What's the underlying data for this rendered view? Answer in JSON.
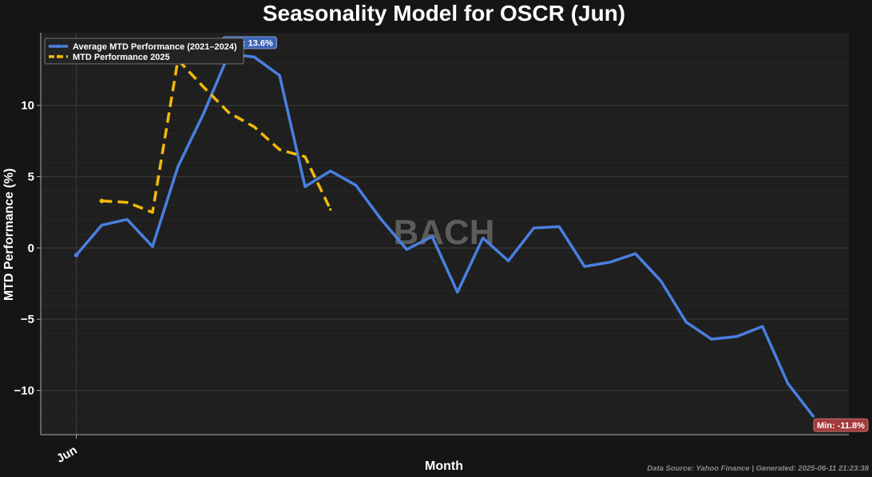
{
  "chart_data": {
    "type": "line",
    "title": "Seasonality Model for OSCR (Jun)",
    "xlabel": "Month",
    "ylabel": "MTD Performance (%)",
    "x_tick_labels": [
      {
        "x": 0,
        "label": "Jun"
      }
    ],
    "xlim": [
      -1.4,
      30.4
    ],
    "ylim": [
      -13.1,
      15.1
    ],
    "yticks": [
      -10,
      -5,
      0,
      5,
      10
    ],
    "ytick_labels": [
      "−10",
      "−5",
      "0",
      "5",
      "10"
    ],
    "grid": true,
    "legend_position": "top-left",
    "series": [
      {
        "name": "Average MTD Performance (2021–2024)",
        "color": "#4a7fe0",
        "style": "solid",
        "x": [
          0,
          1,
          2,
          3,
          4,
          5,
          6,
          7,
          8,
          9,
          10,
          11,
          12,
          13,
          14,
          15,
          16,
          17,
          18,
          19,
          20,
          21,
          22,
          23,
          24,
          25,
          26,
          27,
          28,
          29
        ],
        "values": [
          -0.5,
          1.6,
          2.0,
          0.1,
          5.7,
          9.4,
          13.6,
          13.4,
          12.1,
          4.3,
          5.4,
          4.4,
          2.0,
          -0.1,
          0.8,
          -3.1,
          0.7,
          -0.9,
          1.4,
          1.5,
          -1.3,
          -1.0,
          -0.4,
          -2.3,
          -5.2,
          -6.4,
          -6.2,
          -5.5,
          -9.5,
          -11.8
        ]
      },
      {
        "name": "MTD Performance 2025",
        "color": "#f0b90b",
        "style": "dashed",
        "x": [
          1,
          2,
          3,
          4,
          5,
          6,
          7,
          8,
          9,
          10
        ],
        "values": [
          3.3,
          3.2,
          2.5,
          13.2,
          11.3,
          9.5,
          8.5,
          6.9,
          6.4,
          2.7
        ]
      }
    ],
    "annotations": [
      {
        "text": "Max: 13.6%",
        "x": 6,
        "y": 13.6,
        "color": "#3a63b4"
      },
      {
        "text": "Min: -11.8%",
        "x": 29,
        "y": -11.8,
        "color": "#a33a3a"
      }
    ],
    "watermark": "BACH",
    "footer": "Data Source: Yahoo Finance | Generated: 2025-06-11 21:23:38"
  }
}
